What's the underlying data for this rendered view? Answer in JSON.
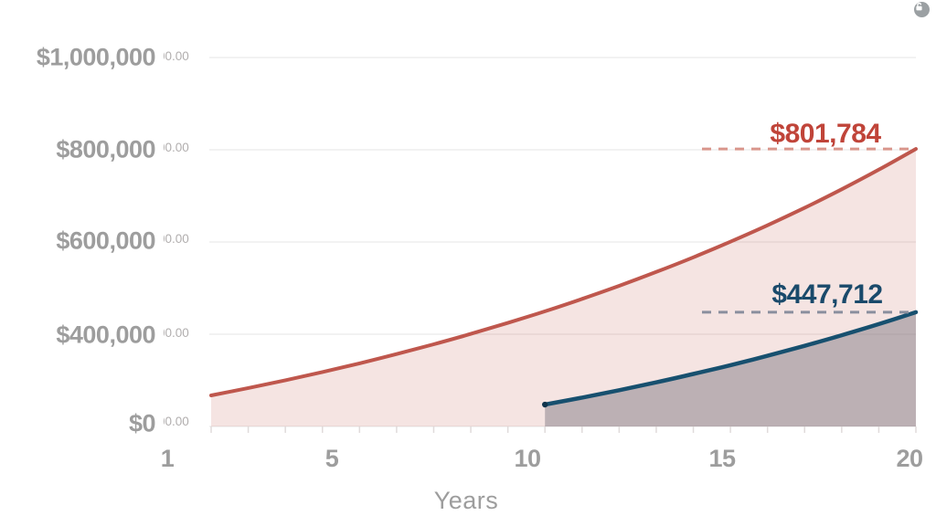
{
  "x_axis": {
    "title": "Years",
    "tick_labels": [
      "1",
      "5",
      "10",
      "15",
      "20"
    ]
  },
  "y_axis": {
    "tick_labels": [
      "$1,000,000",
      "$800,000",
      "$600,000",
      "$400,000",
      "$0"
    ],
    "underlay_fragment": "00.00"
  },
  "icons": {
    "lock_badge": "unlock-icon"
  },
  "colors": {
    "red_line": "#bf574d",
    "red_fill": "rgba(191,87,77,0.16)",
    "blue_line": "#17506f",
    "gray_fill": "rgba(109,104,117,0.42)",
    "red_dash": "#d9968c",
    "blue_dash": "#8a8f9e",
    "red_label": "#c04439",
    "blue_label": "#1a4a6b",
    "gridline": "#e6e4e4",
    "axis_text": "#9d9d9d"
  },
  "chart_data": {
    "type": "area",
    "xlabel": "Years",
    "x_range": [
      1,
      20
    ],
    "x_ticks_shown": [
      1,
      5,
      10,
      15,
      20
    ],
    "y_overlay_tick_labels": [
      "$0",
      "$400,000",
      "$600,000",
      "$800,000",
      "$1,000,000"
    ],
    "y_gridline_values": [
      1000000,
      800000,
      600000,
      400000,
      200000
    ],
    "grid": true,
    "series": [
      {
        "name": "red_curve",
        "end_label": "$801,784",
        "final_value": 801784,
        "years": [
          1,
          2,
          3,
          4,
          5,
          6,
          7,
          8,
          9,
          10,
          11,
          12,
          13,
          14,
          15,
          16,
          17,
          18,
          19,
          20
        ],
        "values": [
          267400,
          283300,
          300200,
          318000,
          336900,
          357000,
          378200,
          400700,
          424600,
          449800,
          476600,
          504900,
          535000,
          566800,
          600600,
          636300,
          674100,
          714300,
          756800,
          801784
        ]
      },
      {
        "name": "blue_curve",
        "end_label": "$447,712",
        "final_value": 447712,
        "start_marker": true,
        "years": [
          10,
          11,
          12,
          13,
          14,
          15,
          16,
          17,
          18,
          19,
          20
        ],
        "values": [
          247500,
          262600,
          278700,
          295700,
          313800,
          332900,
          353300,
          374900,
          397800,
          422000,
          447712
        ]
      }
    ],
    "annotations": [
      {
        "label": "$801,784",
        "value": 801784,
        "style": "dashed-line"
      },
      {
        "label": "$447,712",
        "value": 447712,
        "style": "dashed-line"
      }
    ]
  }
}
